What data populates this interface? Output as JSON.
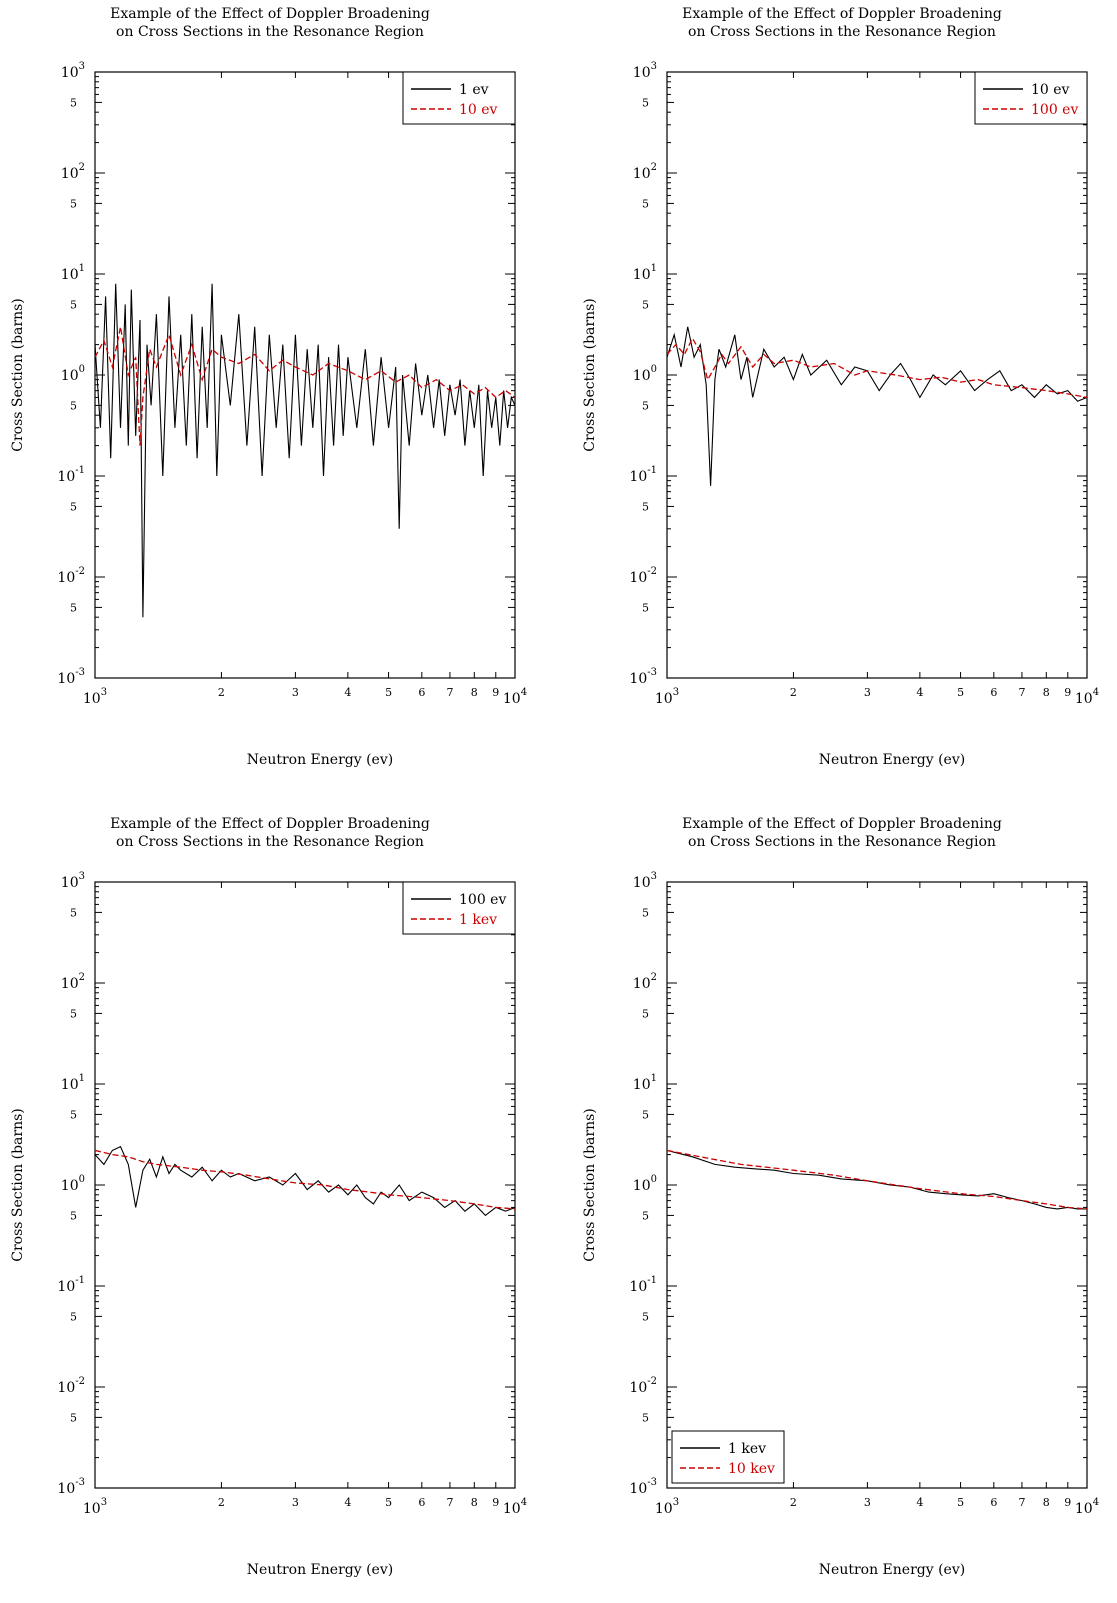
{
  "chart_data": [
    {
      "type": "line",
      "title_line1": "Example of the Effect of Doppler Broadening",
      "title_line2": "on Cross Sections in the Resonance Region",
      "xlabel": "Neutron Energy (ev)",
      "ylabel": "Cross Section (barns)",
      "xscale": "log",
      "yscale": "log",
      "xlim": [
        1000,
        10000
      ],
      "ylim": [
        0.001,
        1000
      ],
      "xticks": [
        "2",
        "3",
        "4",
        "5",
        "6",
        "7",
        "8",
        "9"
      ],
      "legend_position": "top-right",
      "series": [
        {
          "name": "1 ev",
          "color": "#000000",
          "dash": "solid",
          "x": [
            1000,
            1030,
            1060,
            1090,
            1120,
            1150,
            1180,
            1200,
            1220,
            1250,
            1280,
            1300,
            1330,
            1360,
            1400,
            1450,
            1500,
            1550,
            1600,
            1650,
            1700,
            1750,
            1800,
            1850,
            1900,
            1950,
            2000,
            2100,
            2200,
            2300,
            2400,
            2500,
            2600,
            2700,
            2800,
            2900,
            3000,
            3100,
            3200,
            3300,
            3400,
            3500,
            3600,
            3700,
            3800,
            3900,
            4000,
            4200,
            4400,
            4600,
            4800,
            5000,
            5200,
            5300,
            5400,
            5600,
            5800,
            6000,
            6200,
            6400,
            6600,
            6800,
            7000,
            7200,
            7400,
            7600,
            7800,
            8000,
            8200,
            8400,
            8600,
            8800,
            9000,
            9200,
            9400,
            9600,
            9800,
            10000
          ],
          "y": [
            2.0,
            0.3,
            6.0,
            0.15,
            8.0,
            0.3,
            5.0,
            0.2,
            7.0,
            0.25,
            3.5,
            0.004,
            2.0,
            0.5,
            4.0,
            0.1,
            6.0,
            0.3,
            2.5,
            0.2,
            4.0,
            0.15,
            3.0,
            0.3,
            8.0,
            0.1,
            2.5,
            0.5,
            4.0,
            0.2,
            3.0,
            0.1,
            2.5,
            0.3,
            2.0,
            0.15,
            2.5,
            0.2,
            1.8,
            0.3,
            2.0,
            0.1,
            1.5,
            0.2,
            2.0,
            0.25,
            1.5,
            0.3,
            1.8,
            0.2,
            1.5,
            0.3,
            1.2,
            0.03,
            1.0,
            0.2,
            1.3,
            0.4,
            1.0,
            0.3,
            0.9,
            0.25,
            0.8,
            0.4,
            0.9,
            0.2,
            0.7,
            0.3,
            0.8,
            0.1,
            0.7,
            0.3,
            0.6,
            0.2,
            0.7,
            0.3,
            0.6,
            0.5
          ]
        },
        {
          "name": "10 ev",
          "color": "#cc0000",
          "dash": "6,3",
          "x": [
            1000,
            1050,
            1100,
            1150,
            1200,
            1250,
            1280,
            1300,
            1350,
            1400,
            1500,
            1600,
            1700,
            1800,
            1900,
            2000,
            2200,
            2400,
            2600,
            2800,
            3000,
            3300,
            3600,
            4000,
            4400,
            4800,
            5200,
            5600,
            6000,
            6500,
            7000,
            7500,
            8000,
            8500,
            9000,
            9500,
            10000
          ],
          "y": [
            1.5,
            2.2,
            1.2,
            3.0,
            1.0,
            1.5,
            0.2,
            0.6,
            1.8,
            1.2,
            2.5,
            1.0,
            2.0,
            0.9,
            1.8,
            1.5,
            1.3,
            1.6,
            1.1,
            1.4,
            1.2,
            1.0,
            1.3,
            1.1,
            0.9,
            1.1,
            0.85,
            1.0,
            0.75,
            0.9,
            0.7,
            0.8,
            0.65,
            0.75,
            0.6,
            0.7,
            0.6
          ]
        }
      ]
    },
    {
      "type": "line",
      "title_line1": "Example of the Effect of Doppler Broadening",
      "title_line2": "on Cross Sections in the Resonance Region",
      "xlabel": "Neutron Energy (ev)",
      "ylabel": "Cross Section (barns)",
      "xscale": "log",
      "yscale": "log",
      "xlim": [
        1000,
        10000
      ],
      "ylim": [
        0.001,
        1000
      ],
      "xticks": [
        "2",
        "3",
        "4",
        "5",
        "6",
        "7",
        "8",
        "9"
      ],
      "legend_position": "top-right",
      "series": [
        {
          "name": "10 ev",
          "color": "#000000",
          "dash": "solid",
          "x": [
            1000,
            1040,
            1080,
            1120,
            1160,
            1200,
            1240,
            1270,
            1300,
            1330,
            1380,
            1450,
            1500,
            1550,
            1600,
            1700,
            1800,
            1900,
            2000,
            2100,
            2200,
            2400,
            2600,
            2800,
            3000,
            3200,
            3400,
            3600,
            3800,
            4000,
            4300,
            4600,
            5000,
            5400,
            5800,
            6200,
            6600,
            7000,
            7500,
            8000,
            8500,
            9000,
            9500,
            10000
          ],
          "y": [
            1.5,
            2.5,
            1.2,
            3.0,
            1.5,
            2.0,
            0.8,
            0.08,
            0.9,
            1.8,
            1.2,
            2.5,
            0.9,
            1.5,
            0.6,
            1.8,
            1.2,
            1.5,
            0.9,
            1.6,
            1.0,
            1.4,
            0.8,
            1.2,
            1.1,
            0.7,
            1.0,
            1.3,
            0.9,
            0.6,
            1.0,
            0.8,
            1.1,
            0.7,
            0.9,
            1.1,
            0.7,
            0.8,
            0.6,
            0.8,
            0.65,
            0.7,
            0.55,
            0.6
          ]
        },
        {
          "name": "100 ev",
          "color": "#cc0000",
          "dash": "6,3",
          "x": [
            1000,
            1050,
            1100,
            1150,
            1200,
            1250,
            1300,
            1350,
            1400,
            1500,
            1600,
            1700,
            1800,
            2000,
            2200,
            2500,
            2800,
            3000,
            3500,
            4000,
            4500,
            5000,
            5500,
            6000,
            7000,
            8000,
            9000,
            10000
          ],
          "y": [
            1.6,
            2.0,
            1.6,
            2.3,
            1.7,
            0.9,
            1.2,
            1.6,
            1.3,
            1.9,
            1.2,
            1.6,
            1.3,
            1.4,
            1.2,
            1.3,
            1.0,
            1.1,
            1.0,
            0.9,
            0.95,
            0.85,
            0.9,
            0.8,
            0.75,
            0.7,
            0.65,
            0.6
          ]
        }
      ]
    },
    {
      "type": "line",
      "title_line1": "Example of the Effect of Doppler Broadening",
      "title_line2": "on Cross Sections in the Resonance Region",
      "xlabel": "Neutron Energy (ev)",
      "ylabel": "Cross Section (barns)",
      "xscale": "log",
      "yscale": "log",
      "xlim": [
        1000,
        10000
      ],
      "ylim": [
        0.001,
        1000
      ],
      "xticks": [
        "2",
        "3",
        "4",
        "5",
        "6",
        "7",
        "8",
        "9"
      ],
      "legend_position": "top-right",
      "series": [
        {
          "name": "100 ev",
          "color": "#000000",
          "dash": "solid",
          "x": [
            1000,
            1050,
            1100,
            1150,
            1200,
            1250,
            1300,
            1350,
            1400,
            1450,
            1500,
            1550,
            1600,
            1700,
            1800,
            1900,
            2000,
            2100,
            2200,
            2400,
            2600,
            2800,
            3000,
            3200,
            3400,
            3600,
            3800,
            4000,
            4200,
            4400,
            4600,
            4800,
            5000,
            5300,
            5600,
            6000,
            6400,
            6800,
            7200,
            7600,
            8000,
            8500,
            9000,
            9500,
            10000
          ],
          "y": [
            2.0,
            1.6,
            2.2,
            2.4,
            1.6,
            0.6,
            1.4,
            1.8,
            1.2,
            1.9,
            1.3,
            1.6,
            1.4,
            1.2,
            1.5,
            1.1,
            1.4,
            1.2,
            1.3,
            1.1,
            1.2,
            1.0,
            1.3,
            0.9,
            1.1,
            0.85,
            1.0,
            0.8,
            1.0,
            0.75,
            0.65,
            0.85,
            0.75,
            1.0,
            0.7,
            0.85,
            0.75,
            0.6,
            0.7,
            0.55,
            0.65,
            0.5,
            0.6,
            0.55,
            0.6
          ]
        },
        {
          "name": "1 kev",
          "color": "#cc0000",
          "dash": "6,3",
          "x": [
            1000,
            1100,
            1200,
            1300,
            1400,
            1600,
            1800,
            2000,
            2300,
            2600,
            3000,
            3500,
            4000,
            4500,
            5000,
            6000,
            7000,
            8000,
            9000,
            10000
          ],
          "y": [
            2.2,
            2.0,
            1.9,
            1.7,
            1.6,
            1.5,
            1.4,
            1.35,
            1.25,
            1.15,
            1.05,
            1.0,
            0.9,
            0.85,
            0.8,
            0.75,
            0.7,
            0.65,
            0.6,
            0.58
          ]
        }
      ]
    },
    {
      "type": "line",
      "title_line1": "Example of the Effect of Doppler Broadening",
      "title_line2": "on Cross Sections in the Resonance Region",
      "xlabel": "Neutron Energy (ev)",
      "ylabel": "Cross Section (barns)",
      "xscale": "log",
      "yscale": "log",
      "xlim": [
        1000,
        10000
      ],
      "ylim": [
        0.001,
        1000
      ],
      "xticks": [
        "2",
        "3",
        "4",
        "5",
        "6",
        "7",
        "8",
        "9"
      ],
      "legend_position": "bottom-left",
      "series": [
        {
          "name": "1 kev",
          "color": "#000000",
          "dash": "solid",
          "x": [
            1000,
            1150,
            1300,
            1450,
            1600,
            1800,
            2000,
            2300,
            2600,
            3000,
            3400,
            3800,
            4200,
            4600,
            5000,
            5500,
            6000,
            6500,
            7000,
            7500,
            8000,
            8500,
            9000,
            9500,
            10000
          ],
          "y": [
            2.2,
            1.9,
            1.6,
            1.5,
            1.45,
            1.4,
            1.3,
            1.25,
            1.15,
            1.1,
            1.0,
            0.95,
            0.85,
            0.82,
            0.8,
            0.78,
            0.82,
            0.75,
            0.7,
            0.65,
            0.6,
            0.58,
            0.6,
            0.58,
            0.58
          ]
        },
        {
          "name": "10 kev",
          "color": "#cc0000",
          "dash": "6,3",
          "x": [
            1000,
            1200,
            1500,
            2000,
            2500,
            3000,
            3500,
            4000,
            5000,
            6000,
            7000,
            8000,
            9000,
            10000
          ],
          "y": [
            2.2,
            1.9,
            1.6,
            1.4,
            1.25,
            1.1,
            1.0,
            0.92,
            0.82,
            0.77,
            0.7,
            0.65,
            0.6,
            0.58
          ]
        }
      ]
    }
  ]
}
